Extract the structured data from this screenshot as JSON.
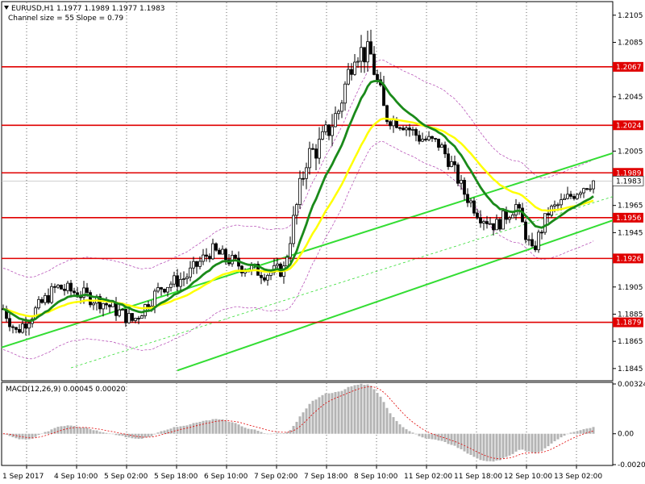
{
  "header": {
    "symbol_line": "EURUSD,H1  1.1977 1.1989 1.1977 1.1983",
    "channel_line": "Channel size = 55 Slope = 0.79"
  },
  "macd_label": "MACD(12,26,9) 0.00045 0.00020",
  "price_axis": {
    "ticks": [
      "1.2105",
      "1.2085",
      "1.2045",
      "1.2005",
      "1.1965",
      "1.1945",
      "1.1905",
      "1.1885",
      "1.1865",
      "1.1845"
    ]
  },
  "macd_axis": {
    "ticks": [
      "0.00324",
      "0.00",
      "-0.00201"
    ]
  },
  "time_axis": {
    "labels": [
      "1 Sep 2017",
      "4 Sep 10:00",
      "5 Sep 02:00",
      "5 Sep 18:00",
      "6 Sep 10:00",
      "7 Sep 02:00",
      "7 Sep 18:00",
      "8 Sep 10:00",
      "11 Sep 02:00",
      "11 Sep 18:00",
      "12 Sep 10:00",
      "13 Sep 02:00"
    ]
  },
  "levels": [
    {
      "label": "1.2067",
      "color": "#e00000"
    },
    {
      "label": "1.2024",
      "color": "#e00000"
    },
    {
      "label": "1.1989",
      "color": "#e00000"
    },
    {
      "label": "1.1983",
      "color": "#ffffff"
    },
    {
      "label": "1.1956",
      "color": "#e00000"
    },
    {
      "label": "1.1926",
      "color": "#e00000"
    },
    {
      "label": "1.1879",
      "color": "#e00000"
    }
  ],
  "colors": {
    "ma_fast": "#1a8a1a",
    "ma_slow": "#ffff00",
    "channel": "#33dd33",
    "level": "#e00000",
    "envelope": "#b040b0",
    "macd_hist": "#b4b4b4",
    "macd_signal": "#e00000"
  },
  "chart_data": {
    "type": "candlestick",
    "symbol": "EURUSD",
    "timeframe": "H1",
    "ylim": [
      1.1836,
      1.2115
    ],
    "ohlc_last": {
      "open": 1.1977,
      "high": 1.1989,
      "low": 1.1977,
      "close": 1.1983
    },
    "horizontal_levels": [
      1.2067,
      1.2024,
      1.1989,
      1.1956,
      1.1926,
      1.1879
    ],
    "macd": {
      "fast": 12,
      "slow": 26,
      "signal": 9,
      "main": 0.00045,
      "signal_value": 0.0002,
      "ylim": [
        -0.00201,
        0.00324
      ]
    }
  }
}
